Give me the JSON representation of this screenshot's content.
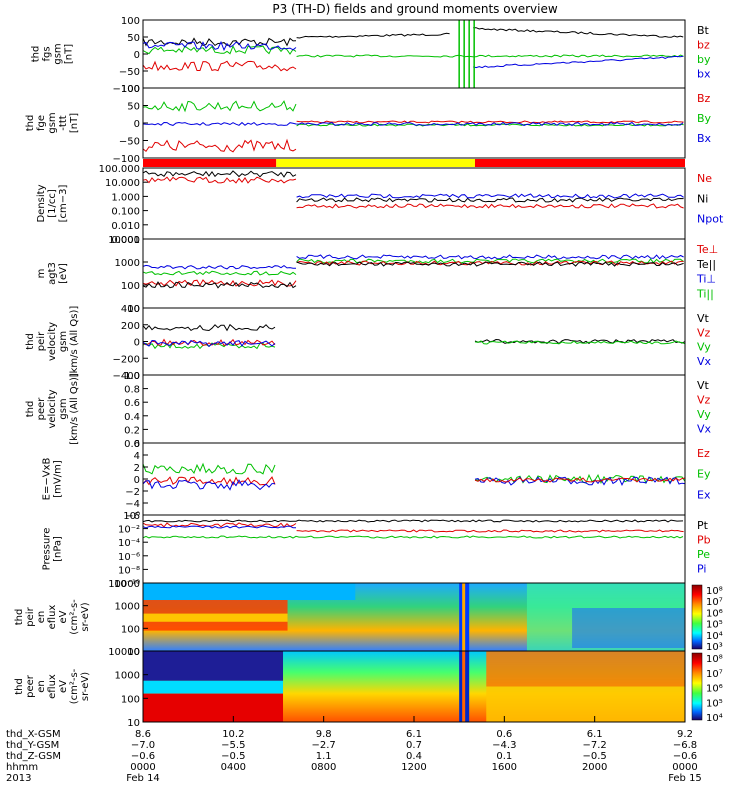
{
  "chart_data": {
    "type": "line",
    "title": "P3 (TH-D) fields and ground moments overview",
    "panels": [
      {
        "ylabel": [
          "thd",
          "fgs",
          "gsm",
          "[nT]"
        ],
        "yticks": [
          "100",
          "50",
          "0",
          "−50",
          "−100"
        ],
        "ylim": [
          -100,
          100
        ],
        "legend": [
          {
            "label": "Bt",
            "color": "#000000"
          },
          {
            "label": "bz",
            "color": "#e00000"
          },
          {
            "label": "by",
            "color": "#00c000"
          },
          {
            "label": "bx",
            "color": "#0000e0"
          }
        ]
      },
      {
        "ylabel": [
          "thd",
          "fge",
          "gsm",
          "-ttt",
          "[nT]"
        ],
        "yticks": [
          "100",
          "50",
          "0",
          "−50",
          "−100"
        ],
        "ylim": [
          -120,
          120
        ],
        "legend": [
          {
            "label": "Bz",
            "color": "#e00000"
          },
          {
            "label": "By",
            "color": "#00c000"
          },
          {
            "label": "Bx",
            "color": "#0000e0"
          }
        ]
      },
      {
        "ylabel": [
          "Density",
          "[1/cc]",
          "[cm−3]"
        ],
        "yticks": [
          "100.000",
          "10.000",
          "1.000",
          "0.100",
          "0.010",
          "0.001"
        ],
        "scale": "log",
        "legend": [
          {
            "label": "Ne",
            "color": "#e00000"
          },
          {
            "label": "Ni",
            "color": "#000000"
          },
          {
            "label": "Npot",
            "color": "#0000e0"
          }
        ]
      },
      {
        "ylabel": [
          "m",
          "agt3",
          "[eV]"
        ],
        "yticks": [
          "10000",
          "1000",
          "100",
          "10"
        ],
        "scale": "log",
        "legend": [
          {
            "label": "Te⊥",
            "color": "#e00000"
          },
          {
            "label": "Te||",
            "color": "#000000"
          },
          {
            "label": "Ti⊥",
            "color": "#0000e0"
          },
          {
            "label": "Ti||",
            "color": "#00c000"
          }
        ]
      },
      {
        "ylabel": [
          "thd",
          "peir",
          "velocity",
          "gsm",
          "[km/s (All Qs)]"
        ],
        "yticks": [
          "400",
          "200",
          "0",
          "−200",
          "−400"
        ],
        "ylim": [
          -400,
          400
        ],
        "legend": [
          {
            "label": "Vt",
            "color": "#000000"
          },
          {
            "label": "Vz",
            "color": "#e00000"
          },
          {
            "label": "Vy",
            "color": "#00c000"
          },
          {
            "label": "Vx",
            "color": "#0000e0"
          }
        ]
      },
      {
        "ylabel": [
          "thd",
          "peer",
          "velocity",
          "gsm",
          "[km/s (All Qs)]"
        ],
        "yticks": [
          "1.0",
          "0.8",
          "0.6",
          "0.4",
          "0.2",
          "0.0"
        ],
        "ylim": [
          0,
          1
        ],
        "legend": [
          {
            "label": "Vt",
            "color": "#000000"
          },
          {
            "label": "Vz",
            "color": "#e00000"
          },
          {
            "label": "Vy",
            "color": "#00c000"
          },
          {
            "label": "Vx",
            "color": "#0000e0"
          }
        ]
      },
      {
        "ylabel": [
          "E=−VxB",
          "[mV/m]"
        ],
        "yticks": [
          "6",
          "4",
          "2",
          "0",
          "−2",
          "−4",
          "−6"
        ],
        "ylim": [
          -6,
          6
        ],
        "legend": [
          {
            "label": "Ez",
            "color": "#e00000"
          },
          {
            "label": "Ey",
            "color": "#00c000"
          },
          {
            "label": "Ex",
            "color": "#0000e0"
          }
        ]
      },
      {
        "ylabel": [
          "Pressure",
          "[nPa]"
        ],
        "yticks": [
          "10⁰",
          "10⁻²",
          "10⁻⁴",
          "10⁻⁶",
          "10⁻⁸",
          "10⁻¹⁰"
        ],
        "scale": "log",
        "legend": [
          {
            "label": "Pt",
            "color": "#000000"
          },
          {
            "label": "Pb",
            "color": "#e00000"
          },
          {
            "label": "Pe",
            "color": "#00c000"
          },
          {
            "label": "Pi",
            "color": "#0000e0"
          }
        ]
      },
      {
        "type": "heatmap",
        "ylabel": [
          "thd",
          "peir",
          "en",
          "eflux",
          "eV",
          "(cm²-s-",
          "sr-eV)"
        ],
        "yticks": [
          "10000",
          "1000",
          "100",
          "10"
        ],
        "colorbar": [
          "10⁸",
          "10⁷",
          "10⁶",
          "10⁵",
          "10⁴",
          "10³"
        ]
      },
      {
        "type": "heatmap",
        "ylabel": [
          "thd",
          "peer",
          "en",
          "eflux",
          "eV",
          "(cm²-s-",
          "sr-eV)"
        ],
        "yticks": [
          "10000",
          "1000",
          "100",
          "10"
        ],
        "colorbar": [
          "10⁸",
          "10⁷",
          "10⁶",
          "10⁵",
          "10⁴"
        ]
      }
    ],
    "mode_bar": [
      {
        "x": [
          0.0,
          2.95
        ],
        "color": "#ff0000"
      },
      {
        "x": [
          2.95,
          7.35
        ],
        "color": "#ffff00"
      },
      {
        "x": [
          7.35,
          12.0
        ],
        "color": "#ff0000"
      }
    ],
    "x_axis": {
      "row_labels": [
        "thd_X-GSM",
        "thd_Y-GSM",
        "thd_Z-GSM",
        "hhmm",
        "2013"
      ],
      "ticks": [
        {
          "x": 0,
          "values": [
            "8.6",
            "−7.0",
            "−0.6",
            "0000",
            "Feb 14"
          ]
        },
        {
          "x": 2,
          "values": [
            "10.2",
            "−5.5",
            "−0.5",
            "0400",
            ""
          ]
        },
        {
          "x": 4,
          "values": [
            "9.8",
            "−2.7",
            "1.1",
            "0800",
            ""
          ]
        },
        {
          "x": 6,
          "values": [
            "6.1",
            "0.7",
            "0.4",
            "1200",
            ""
          ]
        },
        {
          "x": 8,
          "values": [
            "0.6",
            "−4.3",
            "0.1",
            "1600",
            ""
          ]
        },
        {
          "x": 10,
          "values": [
            "6.1",
            "−7.2",
            "−0.5",
            "2000",
            ""
          ]
        },
        {
          "x": 12,
          "values": [
            "9.2",
            "−6.8",
            "−0.6",
            "0000",
            "Feb 15"
          ]
        }
      ]
    }
  }
}
